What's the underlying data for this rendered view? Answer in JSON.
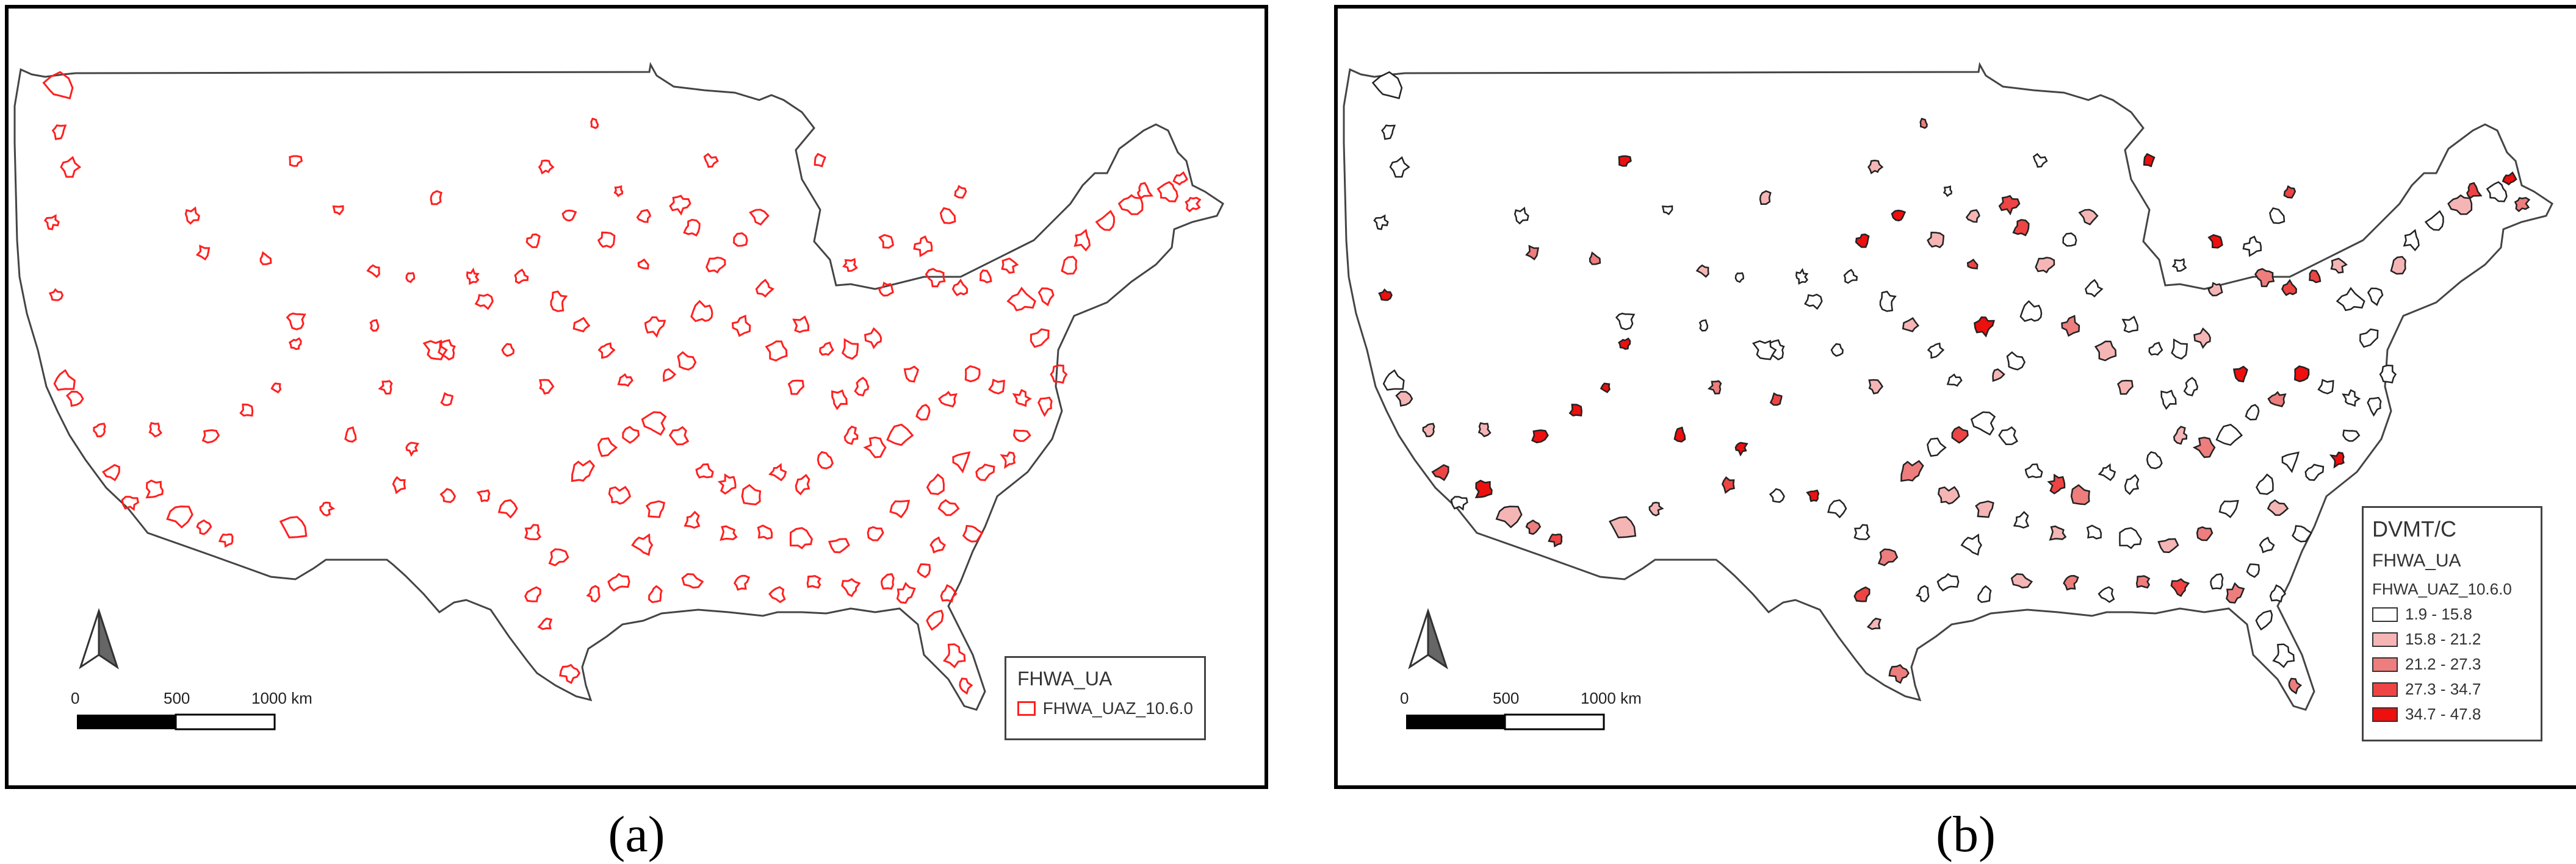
{
  "panels": [
    {
      "caption": "(a)",
      "legend": {
        "title": "FHWA_UA",
        "items": [
          {
            "label": "FHWA_UAZ_10.6.0",
            "stroke": "#ff2020",
            "fill": "none"
          }
        ]
      },
      "scalebar": {
        "labels": [
          "0",
          "500",
          "1000 km"
        ]
      },
      "urban_area_stroke": "#ff2020"
    },
    {
      "caption": "(b)",
      "legend": {
        "title": "DVMT/C",
        "subtitle": "FHWA_UA",
        "layer": "FHWA_UAZ_10.6.0",
        "classes": [
          {
            "label": "1.9 - 15.8",
            "color": "#ffffff"
          },
          {
            "label": "15.8 - 21.2",
            "color": "#f6b5b5"
          },
          {
            "label": "21.2 - 27.3",
            "color": "#ee7d7d"
          },
          {
            "label": "27.3 - 34.7",
            "color": "#ee4444"
          },
          {
            "label": "34.7 - 47.8",
            "color": "#ee0f0f"
          }
        ]
      },
      "scalebar": {
        "labels": [
          "0",
          "500",
          "1000 km"
        ]
      },
      "urban_area_stroke": "#222222"
    }
  ],
  "colors": {
    "basemap_stroke": "#444444",
    "frame": "#000000"
  }
}
